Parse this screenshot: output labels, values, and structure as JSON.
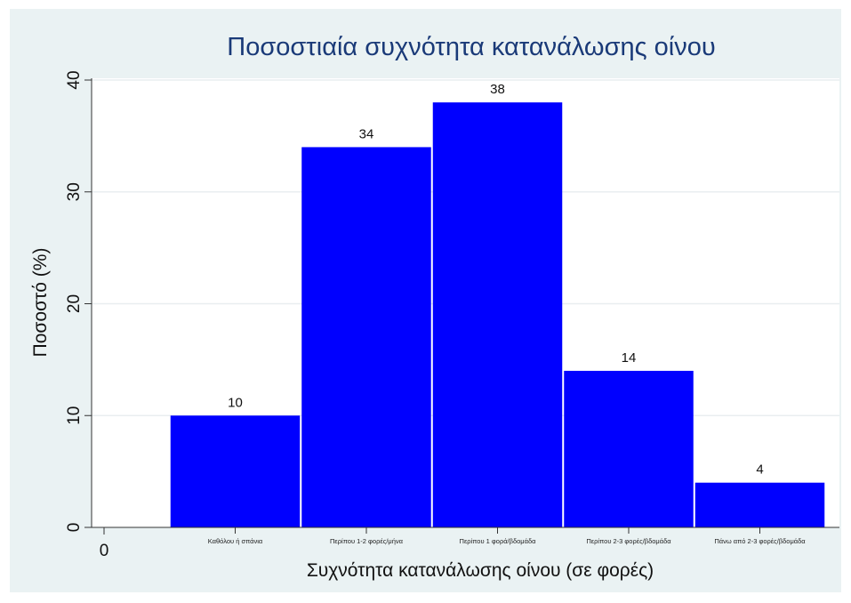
{
  "chart_data": {
    "type": "bar",
    "title": "Ποσοστιαία συχνότητα κατανάλωσης οίνου",
    "xlabel": "Συχνότητα κατανάλωσης οίνου (σε φορές)",
    "ylabel": "Ποσοστό (%)",
    "categories": [
      "Καθόλου ή σπάνια",
      "Περίπου 1-2 φορές/μήνα",
      "Περίπου 1 φορά/βδομάδα",
      "Περίπου 2-3 φορές/βδομάδα",
      "Πάνω από 2-3 φορές/βδομάδα"
    ],
    "values": [
      10,
      34,
      38,
      14,
      4
    ],
    "ylim": [
      0,
      40
    ],
    "yticks": [
      0,
      10,
      20,
      30,
      40
    ],
    "xtick_labels": [
      "0"
    ],
    "grid": true,
    "bar_color": "#0000ff",
    "background_color": "#eaf2f3",
    "plot_background_color": "#ffffff",
    "title_color": "#1a3a78"
  }
}
